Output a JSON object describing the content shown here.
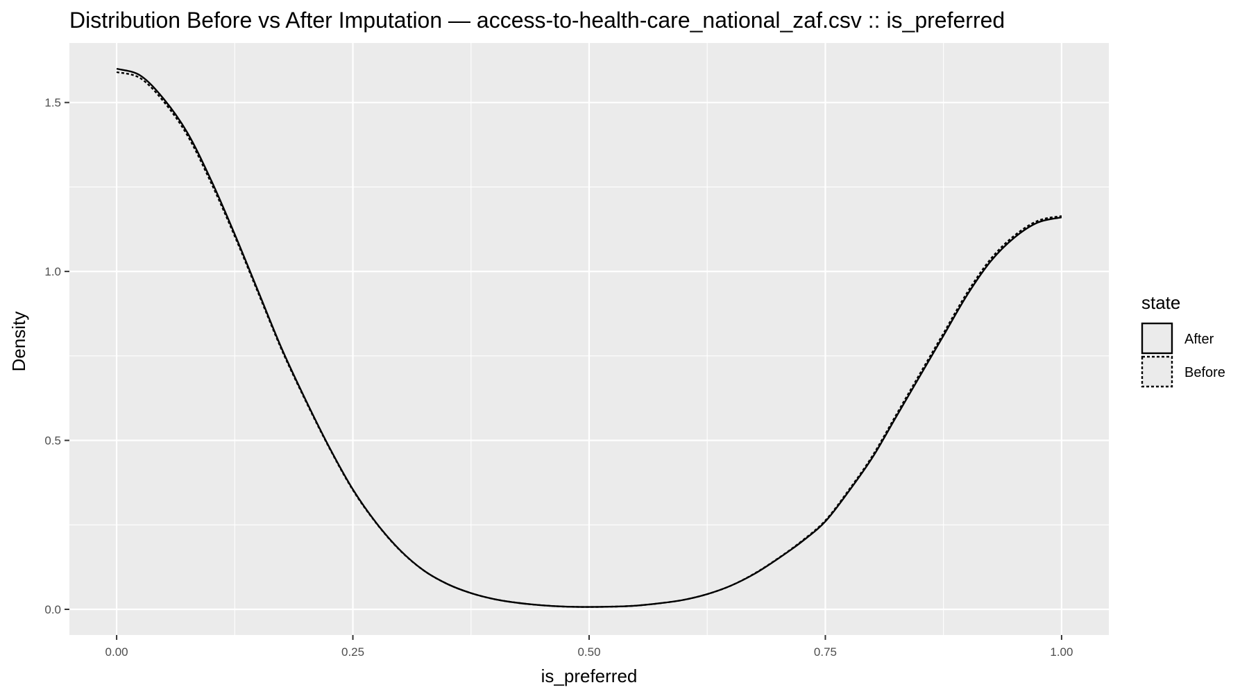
{
  "chart_data": {
    "type": "line",
    "title": "Distribution Before vs After Imputation — access-to-health-care_national_zaf.csv :: is_preferred",
    "xlabel": "is_preferred",
    "ylabel": "Density",
    "xlim": [
      -0.05,
      1.05
    ],
    "ylim": [
      -0.076,
      1.676
    ],
    "x_ticks": [
      0.0,
      0.25,
      0.5,
      0.75,
      1.0
    ],
    "x_tick_labels": [
      "0.00",
      "0.25",
      "0.50",
      "0.75",
      "1.00"
    ],
    "y_ticks": [
      0.0,
      0.5,
      1.0,
      1.5
    ],
    "y_tick_labels": [
      "0.0",
      "0.5",
      "1.0",
      "1.5"
    ],
    "grid": true,
    "legend": {
      "title": "state",
      "placement": "right",
      "entries": [
        {
          "label": "After",
          "linetype": "solid"
        },
        {
          "label": "Before",
          "linetype": "dashed"
        }
      ]
    },
    "colors": {
      "panel_background": "#ebebeb",
      "grid": "#ffffff",
      "line": "#000000",
      "tick_label": "#4d4d4d"
    },
    "series": [
      {
        "name": "After",
        "linetype": "solid",
        "x": [
          0.0,
          0.025,
          0.05,
          0.075,
          0.1,
          0.125,
          0.15,
          0.175,
          0.2,
          0.225,
          0.25,
          0.275,
          0.3,
          0.325,
          0.35,
          0.375,
          0.4,
          0.425,
          0.45,
          0.475,
          0.5,
          0.525,
          0.55,
          0.575,
          0.6,
          0.625,
          0.65,
          0.675,
          0.7,
          0.725,
          0.75,
          0.775,
          0.8,
          0.825,
          0.85,
          0.875,
          0.9,
          0.925,
          0.95,
          0.975,
          1.0
        ],
        "y": [
          1.6,
          1.58,
          1.51,
          1.41,
          1.27,
          1.11,
          0.94,
          0.77,
          0.62,
          0.48,
          0.355,
          0.255,
          0.175,
          0.115,
          0.075,
          0.048,
          0.03,
          0.019,
          0.012,
          0.008,
          0.007,
          0.008,
          0.011,
          0.018,
          0.028,
          0.045,
          0.07,
          0.105,
          0.15,
          0.2,
          0.26,
          0.35,
          0.45,
          0.57,
          0.69,
          0.81,
          0.93,
          1.03,
          1.1,
          1.145,
          1.16
        ]
      },
      {
        "name": "Before",
        "linetype": "dashed",
        "x": [
          0.0,
          0.025,
          0.05,
          0.075,
          0.1,
          0.125,
          0.15,
          0.175,
          0.2,
          0.225,
          0.25,
          0.275,
          0.3,
          0.325,
          0.35,
          0.375,
          0.4,
          0.425,
          0.45,
          0.475,
          0.5,
          0.525,
          0.55,
          0.575,
          0.6,
          0.625,
          0.65,
          0.675,
          0.7,
          0.725,
          0.75,
          0.775,
          0.8,
          0.825,
          0.85,
          0.875,
          0.9,
          0.925,
          0.95,
          0.975,
          1.0
        ],
        "y": [
          1.59,
          1.572,
          1.502,
          1.402,
          1.262,
          1.104,
          0.935,
          0.766,
          0.617,
          0.478,
          0.353,
          0.254,
          0.174,
          0.115,
          0.075,
          0.048,
          0.03,
          0.019,
          0.012,
          0.008,
          0.007,
          0.008,
          0.011,
          0.018,
          0.028,
          0.045,
          0.07,
          0.106,
          0.151,
          0.202,
          0.263,
          0.354,
          0.455,
          0.576,
          0.697,
          0.817,
          0.937,
          1.037,
          1.106,
          1.15,
          1.164
        ]
      }
    ]
  }
}
